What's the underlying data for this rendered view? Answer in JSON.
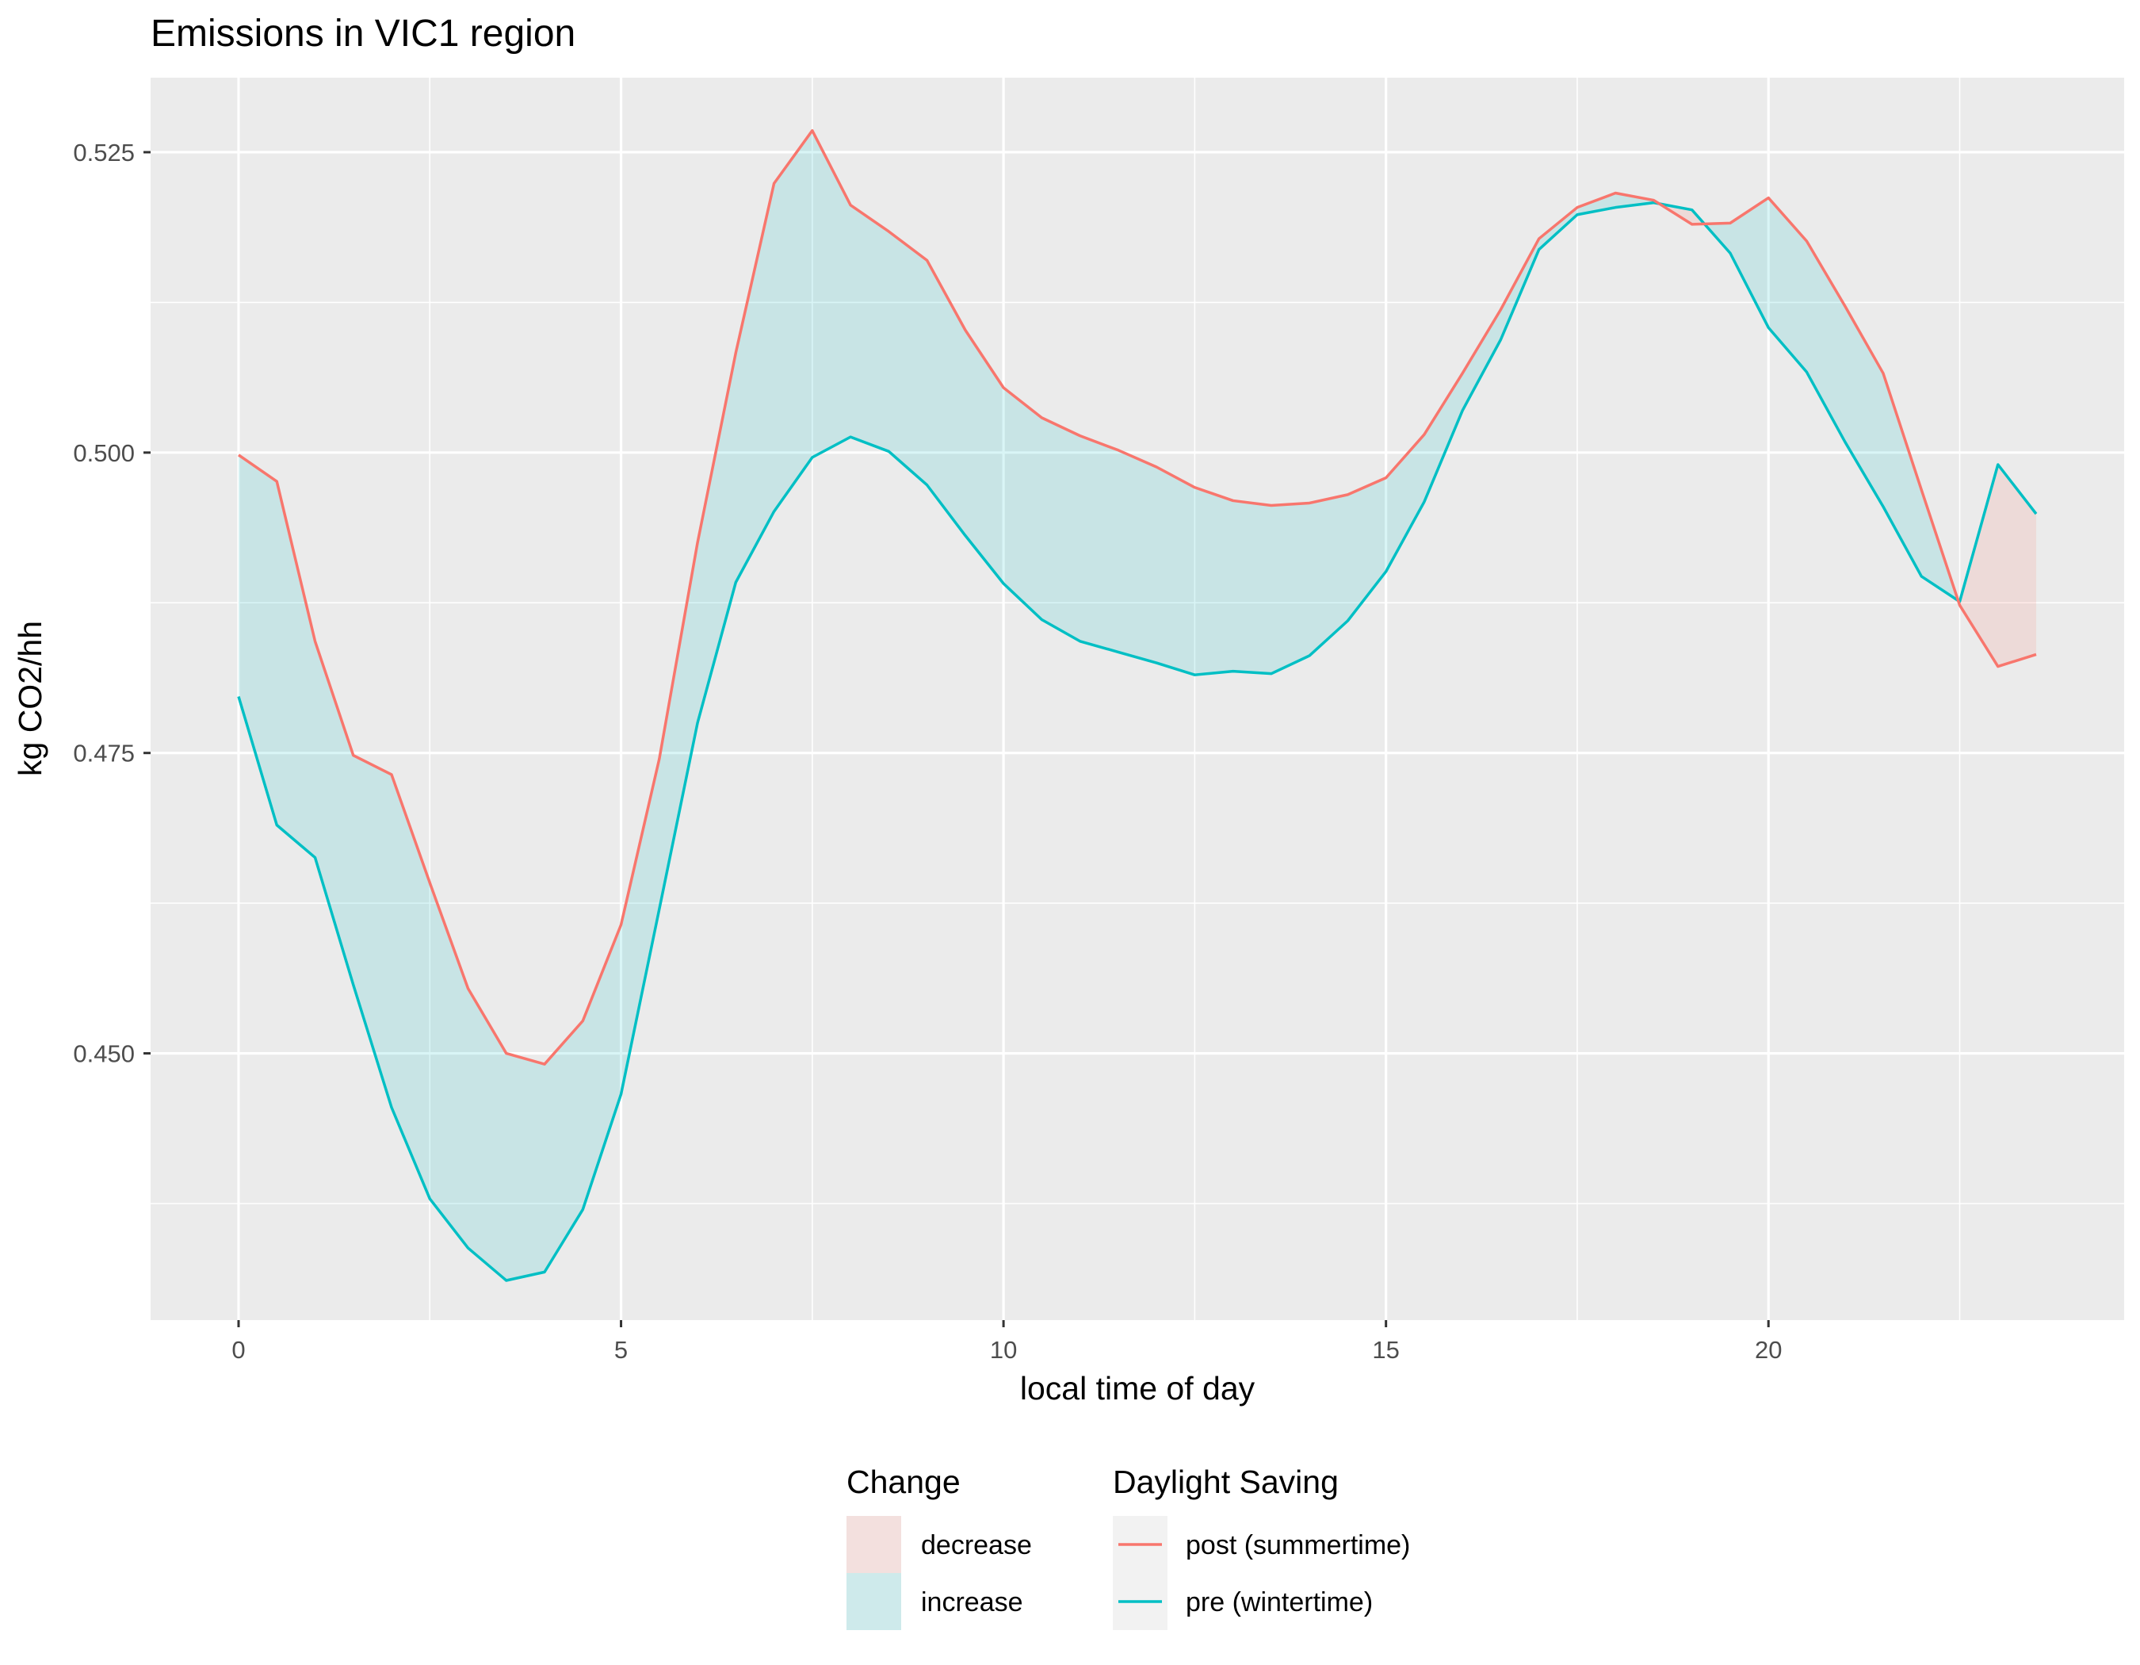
{
  "chart_data": {
    "type": "line",
    "title": "Emissions in VIC1 region",
    "xlabel": "local time of day",
    "ylabel": "kg CO2/hh",
    "xlim": [
      -1.15,
      24.65
    ],
    "ylim": [
      0.4278,
      0.5312
    ],
    "x_ticks": [
      0,
      5,
      10,
      15,
      20
    ],
    "x_tick_labels": [
      "0",
      "5",
      "10",
      "15",
      "20"
    ],
    "y_ticks": [
      0.45,
      0.475,
      0.5,
      0.525
    ],
    "y_tick_labels": [
      "0.450",
      "0.475",
      "0.500",
      "0.525"
    ],
    "x": [
      0,
      0.5,
      1,
      1.5,
      2,
      2.5,
      3,
      3.5,
      4,
      4.5,
      5,
      5.5,
      6,
      6.5,
      7,
      7.5,
      8,
      8.5,
      9,
      9.5,
      10,
      10.5,
      11,
      11.5,
      12,
      12.5,
      13,
      13.5,
      14,
      14.5,
      15,
      15.5,
      16,
      16.5,
      17,
      17.5,
      18,
      18.5,
      19,
      19.5,
      20,
      20.5,
      21,
      21.5,
      22,
      22.5,
      23,
      23.5
    ],
    "series": [
      {
        "name": "post (summertime)",
        "color": "#F8766D",
        "values": [
          0.4998,
          0.4976,
          0.4843,
          0.4748,
          0.4732,
          0.4642,
          0.4554,
          0.45,
          0.4491,
          0.4527,
          0.4607,
          0.4745,
          0.4925,
          0.5083,
          0.5224,
          0.5268,
          0.5206,
          0.5184,
          0.516,
          0.5102,
          0.5054,
          0.5029,
          0.5014,
          0.5002,
          0.4988,
          0.4971,
          0.496,
          0.4956,
          0.4958,
          0.4965,
          0.4979,
          0.5015,
          0.5066,
          0.5119,
          0.5178,
          0.5204,
          0.5216,
          0.521,
          0.519,
          0.5191,
          0.5212,
          0.5176,
          0.5122,
          0.5066,
          0.4969,
          0.4873,
          0.4822,
          0.4832
        ]
      },
      {
        "name": "pre (wintertime)",
        "color": "#00BFC4",
        "values": [
          0.4797,
          0.469,
          0.4663,
          0.4557,
          0.4455,
          0.4379,
          0.4338,
          0.4311,
          0.4318,
          0.437,
          0.4466,
          0.462,
          0.4775,
          0.4892,
          0.4951,
          0.4996,
          0.5013,
          0.5001,
          0.4973,
          0.4931,
          0.4891,
          0.4861,
          0.4843,
          0.4834,
          0.4825,
          0.4815,
          0.4818,
          0.4816,
          0.4831,
          0.486,
          0.4901,
          0.4959,
          0.5035,
          0.5094,
          0.5169,
          0.5198,
          0.5204,
          0.5208,
          0.5202,
          0.5166,
          0.5104,
          0.5067,
          0.5009,
          0.4955,
          0.4897,
          0.4876,
          0.499,
          0.4949
        ]
      }
    ],
    "ribbon": {
      "title": "Change",
      "fill_increase": "#00BFC4",
      "fill_decrease": "#F8766D",
      "alpha": 0.15,
      "labels": [
        "decrease",
        "increase"
      ]
    },
    "legend": {
      "position": "bottom",
      "line_title": "Daylight Saving"
    },
    "panel_background": "#EBEBEB",
    "grid": true
  }
}
